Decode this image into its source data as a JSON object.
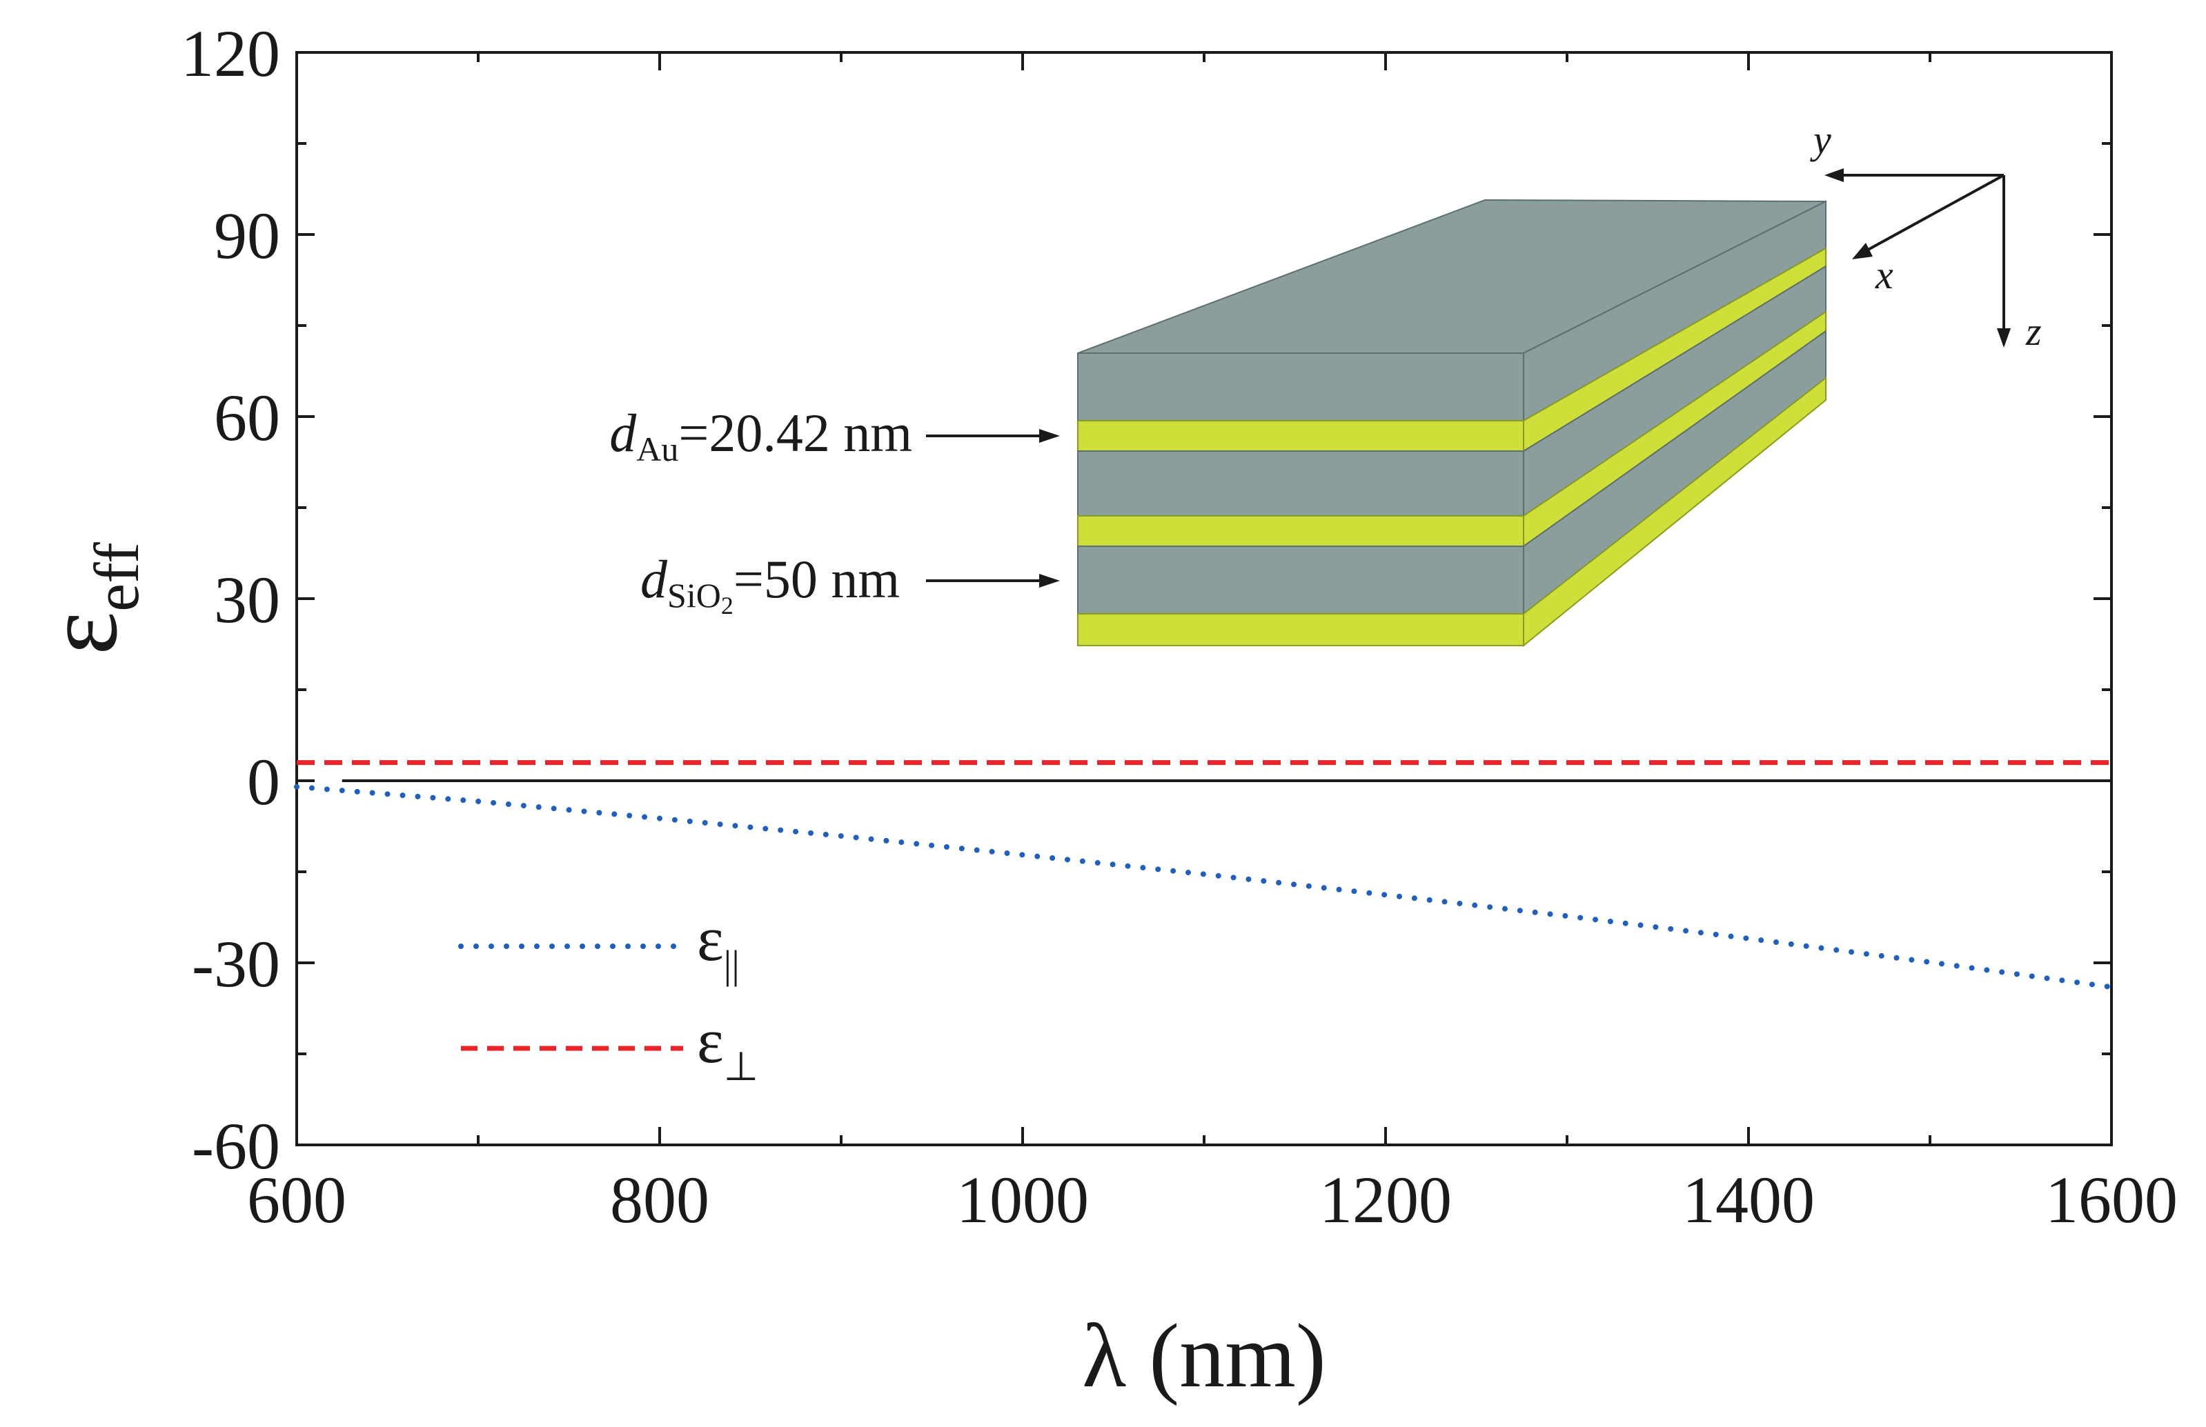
{
  "chart_data": {
    "type": "line",
    "xlabel": "λ (nm)",
    "ylabel_main": "ε",
    "ylabel_sub": "eff",
    "xlim": [
      600,
      1600
    ],
    "ylim": [
      -60,
      120
    ],
    "xticks": [
      600,
      800,
      1000,
      1200,
      1400,
      1600
    ],
    "xtick_labels": [
      "600",
      "800",
      "1000",
      "1200",
      "1400",
      "1600"
    ],
    "x_minor_step": 100,
    "yticks": [
      -60,
      -30,
      0,
      30,
      60,
      90,
      120
    ],
    "ytick_labels": [
      "-60",
      "-30",
      "0",
      "30",
      "60",
      "90",
      "120"
    ],
    "y_minor_step": 15,
    "zero_line": true,
    "legend_position": "lower-left",
    "series": [
      {
        "name": "ε||",
        "legend_main": "ε",
        "legend_sub": "||",
        "style": "dotted",
        "color": "#1f5fbf",
        "x": [
          600,
          700,
          800,
          900,
          1000,
          1100,
          1200,
          1300,
          1400,
          1500,
          1600
        ],
        "y": [
          -1.0,
          -3.4,
          -6.2,
          -9.1,
          -12.2,
          -15.4,
          -18.8,
          -22.3,
          -26.0,
          -29.9,
          -34.0
        ]
      },
      {
        "name": "ε⊥",
        "legend_main": "ε",
        "legend_sub": "⊥",
        "style": "dashed",
        "color": "#e8232a",
        "x": [
          600,
          700,
          800,
          900,
          1000,
          1100,
          1200,
          1300,
          1400,
          1500,
          1600
        ],
        "y": [
          3.0,
          3.0,
          3.0,
          3.0,
          3.0,
          3.0,
          3.0,
          3.0,
          3.0,
          3.0,
          3.0
        ]
      }
    ]
  },
  "inset": {
    "label_au_d": "d",
    "label_au_sub": "Au",
    "label_au_value": "=20.42 nm",
    "label_sio2_d": "d",
    "label_sio2_sub": "SiO",
    "label_sio2_sub2": "2",
    "label_sio2_value": "=50 nm",
    "axis_x": "x",
    "axis_y": "y",
    "axis_z": "z",
    "color_sio2": "#8a9e9e",
    "color_au": "#cedf3a"
  }
}
